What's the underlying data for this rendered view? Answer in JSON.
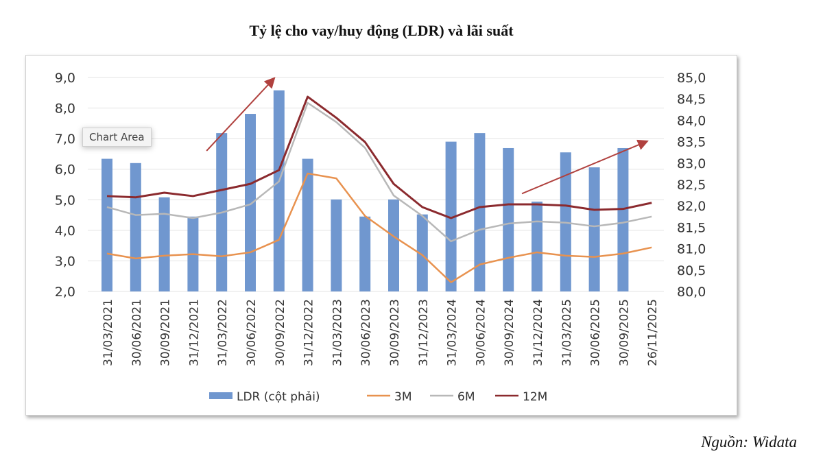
{
  "chart_data": {
    "type": "bar+line",
    "title": "Tỷ lệ cho vay/huy động (LDR) và lãi suất",
    "categories": [
      "31/03/2021",
      "30/06/2021",
      "30/09/2021",
      "31/12/2021",
      "31/03/2022",
      "30/06/2022",
      "30/09/2022",
      "31/12/2022",
      "31/03/2023",
      "30/06/2023",
      "30/09/2023",
      "31/12/2023",
      "31/03/2024",
      "30/06/2024",
      "30/09/2024",
      "31/12/2024",
      "31/03/2025",
      "30/06/2025",
      "30/09/2025",
      "26/11/2025"
    ],
    "y_left": {
      "range": [
        2.0,
        9.0
      ],
      "ticks": [
        "2,0",
        "3,0",
        "4,0",
        "5,0",
        "6,0",
        "7,0",
        "8,0",
        "9,0"
      ]
    },
    "y_right": {
      "range": [
        80.0,
        85.0
      ],
      "ticks": [
        "80,0",
        "80,5",
        "81,0",
        "81,5",
        "82,0",
        "82,5",
        "83,0",
        "83,5",
        "84,0",
        "84,5",
        "85,0"
      ]
    },
    "grid": true,
    "legend_position": "bottom",
    "series": [
      {
        "name": "LDR (cột phải)",
        "type": "bar",
        "axis": "right",
        "color": "#7097cf",
        "values": [
          83.1,
          83.0,
          82.2,
          81.75,
          83.7,
          84.15,
          84.7,
          83.1,
          82.15,
          81.75,
          82.15,
          81.8,
          83.5,
          83.7,
          83.35,
          82.1,
          83.25,
          82.9,
          83.35,
          null
        ]
      },
      {
        "name": "3M",
        "type": "line",
        "axis": "left",
        "color": "#e8924f",
        "values": [
          3.24,
          3.08,
          3.17,
          3.22,
          3.15,
          3.28,
          3.69,
          5.86,
          5.7,
          4.47,
          3.8,
          3.19,
          2.3,
          2.88,
          3.1,
          3.28,
          3.17,
          3.13,
          3.24,
          3.44
        ]
      },
      {
        "name": "6M",
        "type": "line",
        "axis": "left",
        "color": "#b8b8b8",
        "values": [
          4.76,
          4.5,
          4.54,
          4.4,
          4.58,
          4.85,
          5.6,
          8.17,
          7.54,
          6.7,
          5.14,
          4.47,
          3.64,
          4.02,
          4.22,
          4.29,
          4.25,
          4.13,
          4.25,
          4.45
        ]
      },
      {
        "name": "12M",
        "type": "line",
        "axis": "left",
        "color": "#8b2a2e",
        "values": [
          5.12,
          5.08,
          5.23,
          5.12,
          5.32,
          5.52,
          5.97,
          8.37,
          7.68,
          6.89,
          5.52,
          4.76,
          4.4,
          4.76,
          4.85,
          4.85,
          4.81,
          4.67,
          4.7,
          4.9
        ]
      }
    ],
    "annotations": [
      {
        "type": "arrow",
        "color": "#b0413e",
        "from": [
          "31/03/2022",
          6.6
        ],
        "to": [
          "30/09/2022",
          8.95
        ]
      },
      {
        "type": "arrow",
        "color": "#b0413e",
        "from": [
          "31/12/2024",
          5.2
        ],
        "to": [
          "26/11/2025",
          6.9
        ]
      }
    ]
  },
  "overlay": {
    "tooltip": "Chart Area"
  },
  "source": "Nguồn: Widata"
}
